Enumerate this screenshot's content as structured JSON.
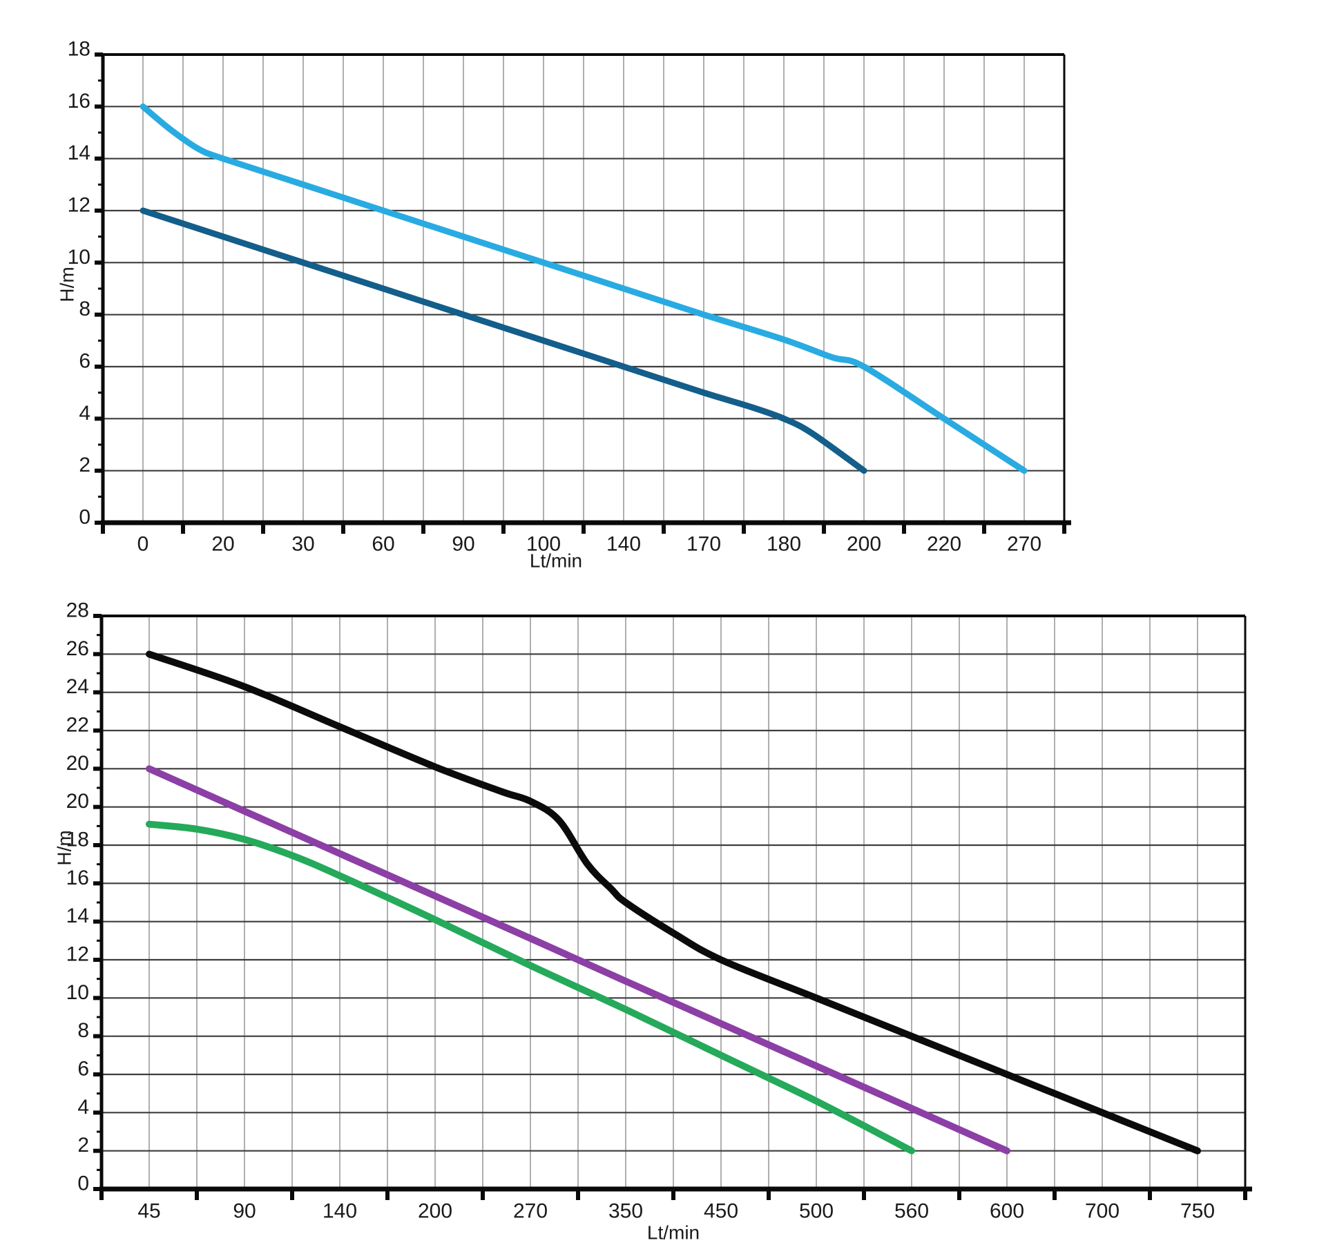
{
  "figure": {
    "background": "#ffffff",
    "description_colors": {
      "grid_vertical": "#9b9b9b",
      "grid_horizontal": "#3d3d3d",
      "frame": "#0a0a0a",
      "tick_text": "#1a1a1a"
    }
  },
  "chart_data": [
    {
      "id": "chart-top",
      "type": "line",
      "title": "",
      "xlabel": "Lt/min",
      "ylabel": "H/m",
      "x_axis_type": "categorical-nonlinear, labels evenly spaced",
      "x_tick_labels": [
        "0",
        "20",
        "30",
        "60",
        "90",
        "100",
        "140",
        "170",
        "180",
        "200",
        "220",
        "270"
      ],
      "y_tick_labels_top_to_bottom": [
        "18",
        "16",
        "14",
        "12",
        "10",
        "8",
        "6",
        "4",
        "2",
        "0"
      ],
      "ylim": [
        0,
        18
      ],
      "y_step": 2,
      "grid": "vertical minor+major gray lines, horizontal dark lines every 2 units",
      "legend": "none",
      "series": [
        {
          "name": "light-blue",
          "color": "#29ABE2",
          "x_labels": [
            0,
            20,
            30,
            60,
            90,
            100,
            140,
            170,
            180,
            200,
            220,
            270
          ],
          "H_values": [
            16,
            14,
            13,
            12,
            11,
            10,
            9,
            8,
            7,
            6,
            4,
            2
          ],
          "shape_xi": [
            0,
            0.35,
            0.7,
            1,
            2,
            3,
            4,
            5,
            6,
            7,
            8,
            8.6,
            9,
            10,
            11
          ],
          "shape_gi": [
            8,
            7.55,
            7.18,
            7,
            6.5,
            6,
            5.5,
            5,
            4.5,
            4,
            3.52,
            3.18,
            3,
            2,
            1
          ]
        },
        {
          "name": "dark-blue",
          "color": "#135E8A",
          "x_labels": [
            0,
            20,
            30,
            60,
            90,
            100,
            140,
            170,
            180,
            200
          ],
          "H_values": [
            12,
            11,
            10,
            9,
            8,
            7,
            6,
            5,
            4,
            2
          ],
          "shape_xi": [
            0,
            1,
            2,
            3,
            4,
            5,
            6,
            7,
            7.6,
            8,
            8.35,
            9
          ],
          "shape_gi": [
            6,
            5.5,
            5,
            4.5,
            4,
            3.5,
            3,
            2.5,
            2.22,
            2,
            1.72,
            1
          ]
        }
      ]
    },
    {
      "id": "chart-bottom",
      "type": "line",
      "title": "",
      "xlabel": "Lt/min",
      "ylabel": "H/m",
      "x_axis_type": "categorical-nonlinear, labels evenly spaced",
      "x_tick_labels": [
        "45",
        "90",
        "140",
        "200",
        "270",
        "350",
        "450",
        "500",
        "560",
        "600",
        "700",
        "750"
      ],
      "y_tick_labels_top_to_bottom": [
        "28",
        "26",
        "24",
        "22",
        "20",
        "20",
        "18",
        "16",
        "14",
        "12",
        "10",
        "8",
        "6",
        "4",
        "2",
        "0"
      ],
      "y_axis_note": "axis shows the label 20 on two consecutive gridlines (duplicate as printed)",
      "ylim": [
        0,
        28
      ],
      "y_step": 2,
      "grid": "vertical minor+major gray lines, horizontal dark lines on every labeled gridline",
      "legend": "none",
      "series": [
        {
          "name": "black",
          "color": "#0b0b0b",
          "x_labels": [
            45,
            90,
            140,
            200,
            270,
            350,
            450,
            500,
            560,
            600,
            700,
            750
          ],
          "H_values": [
            26,
            24.3,
            22.2,
            20.2,
            19.5,
            15,
            12,
            10,
            8,
            6,
            4,
            2
          ],
          "shape_xi": [
            0,
            1,
            2,
            3,
            3.7,
            4,
            4.3,
            4.6,
            4.85,
            5,
            5.5,
            6,
            7,
            8,
            9,
            10,
            11
          ],
          "shape_gi": [
            14,
            13.15,
            12.1,
            11.05,
            10.4,
            10.15,
            9.65,
            8.5,
            7.85,
            7.5,
            6.7,
            6,
            5,
            4,
            3,
            2,
            1
          ]
        },
        {
          "name": "purple",
          "color": "#8C3FA5",
          "x_labels": [
            45,
            90,
            140,
            200,
            270,
            350,
            450,
            500,
            560,
            600
          ],
          "H_values": [
            20,
            19.8,
            17.6,
            15.3,
            13.1,
            10.9,
            8.7,
            6.4,
            4.2,
            2
          ],
          "shape_xi": [
            0,
            1,
            2,
            3,
            4,
            5,
            6,
            7,
            8,
            9
          ],
          "shape_gi": [
            11,
            9.89,
            8.78,
            7.67,
            6.56,
            5.44,
            4.33,
            3.22,
            2.11,
            1
          ]
        },
        {
          "name": "green",
          "color": "#25A95B",
          "x_labels": [
            45,
            90,
            140,
            200,
            270,
            350,
            450,
            500,
            560
          ],
          "H_values": [
            19,
            18.3,
            16.4,
            14.1,
            11.7,
            9.4,
            7,
            4.6,
            2
          ],
          "shape_xi": [
            0,
            0.5,
            1,
            1.5,
            2,
            3,
            4,
            5,
            6,
            7,
            8
          ],
          "shape_gi": [
            9.55,
            9.42,
            9.15,
            8.73,
            8.2,
            7.05,
            5.85,
            4.7,
            3.5,
            2.3,
            1
          ]
        }
      ]
    }
  ]
}
